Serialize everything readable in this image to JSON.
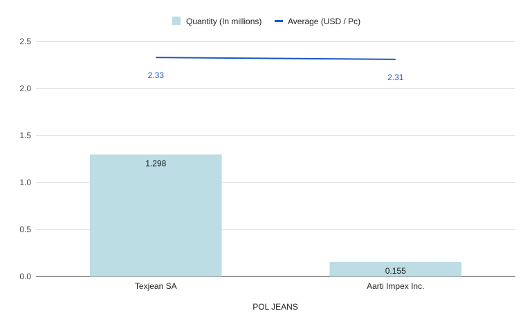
{
  "chart_data": {
    "type": "bar",
    "categories": [
      "Texjean SA",
      "Aarti Impex Inc."
    ],
    "series": [
      {
        "name": "Quantity (In millions)",
        "kind": "bar",
        "values": [
          1.298,
          0.155
        ],
        "labels": [
          "1.298",
          "0.155"
        ],
        "color": "#bcdde4"
      },
      {
        "name": "Average (USD / Pc)",
        "kind": "line",
        "values": [
          2.33,
          2.31
        ],
        "labels": [
          "2.33",
          "2.31"
        ],
        "color": "#1a56c4"
      }
    ],
    "xlabel": "POL JEANS",
    "ylabel": "",
    "ylim": [
      0,
      2.5
    ],
    "yticks": [
      "0.0",
      "0.5",
      "1.0",
      "1.5",
      "2.0",
      "2.5"
    ],
    "ytick_values": [
      0,
      0.5,
      1.0,
      1.5,
      2.0,
      2.5
    ],
    "grid": true,
    "legend_position": "top-center"
  }
}
